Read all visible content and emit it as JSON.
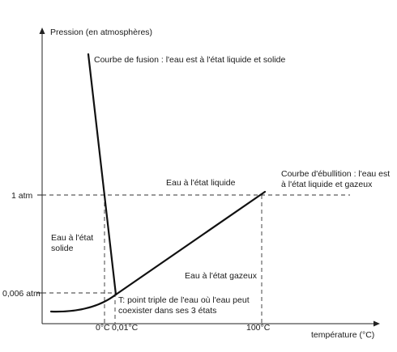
{
  "diagram": {
    "axes": {
      "y_label": "Pression (en atmosphères)",
      "x_label": "température (°C)"
    },
    "y_ticks": {
      "one_atm": "1 atm",
      "triple_pressure": "0,006 atm"
    },
    "x_ticks": {
      "zero": "0°C",
      "triple_temp": "0,01°C",
      "hundred": "100°C"
    },
    "regions": {
      "liquid": "Eau à l'état liquide",
      "solid_line1": "Eau à l'état",
      "solid_line2": "solide",
      "gas": "Eau à l'état gazeux"
    },
    "annotations": {
      "fusion": "Courbe de fusion : l'eau est à l'état liquide et solide",
      "boiling_line1": "Courbe d'ébullition : l'eau est",
      "boiling_line2": "à l'état liquide et gazeux",
      "triple_line1": "T: point triple de l'eau où l'eau peut",
      "triple_line2": "coexister dans ses 3 états"
    }
  }
}
